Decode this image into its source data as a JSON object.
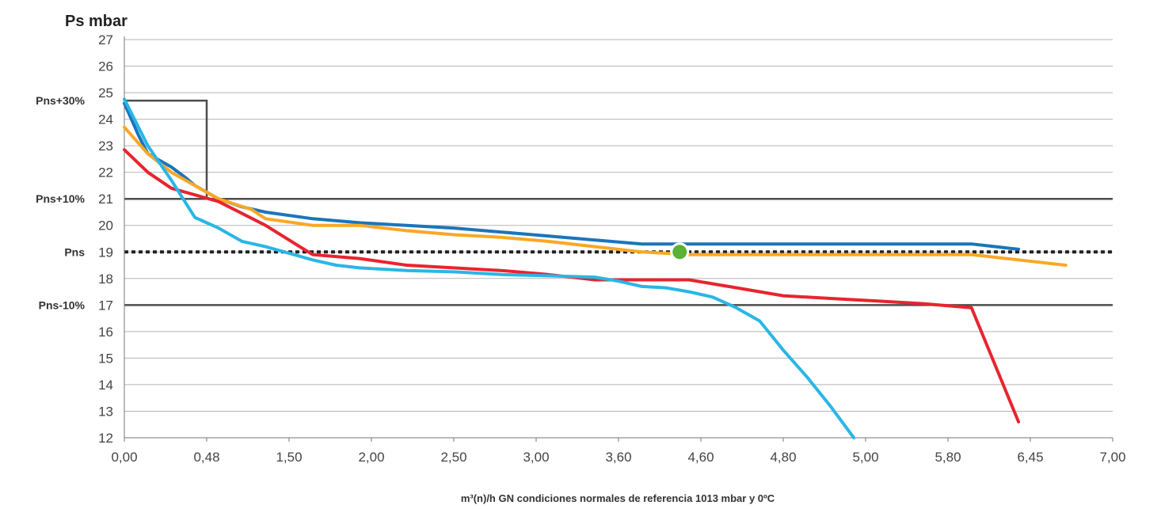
{
  "chart_data": {
    "type": "line",
    "title": "",
    "ylabel": "Ps mbar",
    "xlabel": "m³(n)/h GN condiciones normales de referencia 1013 mbar y 0ºC",
    "categories": [
      "0,00",
      "0,48",
      "1,50",
      "2,00",
      "2,50",
      "3,00",
      "3,60",
      "4,60",
      "4,80",
      "5,00",
      "5,80",
      "6,45",
      "7,00"
    ],
    "ylim": [
      12,
      27
    ],
    "yticks": [
      12,
      13,
      14,
      15,
      16,
      17,
      18,
      19,
      20,
      21,
      22,
      23,
      24,
      25,
      26,
      27
    ],
    "grid": true,
    "reference_lines": [
      {
        "label": "Pns+30%",
        "y": 24.7,
        "style": "box",
        "x_end_index": 1,
        "color": "#4d4d4d"
      },
      {
        "label": "Pns+10%",
        "y": 21,
        "style": "solid",
        "color": "#4d4d4d"
      },
      {
        "label": "Pns",
        "y": 19,
        "style": "dotted",
        "color": "#222222"
      },
      {
        "label": "Pns-10%",
        "y": 17,
        "style": "solid",
        "color": "#4d4d4d"
      }
    ],
    "series": [
      {
        "color": "#1b75bb",
        "points": [
          [
            0,
            24.6
          ],
          [
            0.3,
            23.4
          ],
          [
            0.5,
            22.7
          ],
          [
            1,
            22.2
          ],
          [
            1.3,
            21.8
          ],
          [
            1.5,
            21.5
          ],
          [
            2,
            21.0
          ],
          [
            2.5,
            20.7
          ],
          [
            3,
            20.5
          ],
          [
            4,
            20.25
          ],
          [
            5,
            20.1
          ],
          [
            6,
            20.0
          ],
          [
            7,
            19.9
          ],
          [
            8,
            19.75
          ],
          [
            9,
            19.6
          ],
          [
            10,
            19.45
          ],
          [
            11,
            19.3
          ],
          [
            12,
            19.3
          ],
          [
            13,
            19.3
          ],
          [
            14,
            19.3
          ],
          [
            15,
            19.3
          ],
          [
            16,
            19.3
          ],
          [
            17,
            19.3
          ],
          [
            18,
            19.3
          ],
          [
            19,
            19.1
          ]
        ]
      },
      {
        "color": "#f9a825",
        "points": [
          [
            0,
            23.7
          ],
          [
            0.5,
            22.7
          ],
          [
            1,
            22.0
          ],
          [
            1.5,
            21.5
          ],
          [
            2,
            21.0
          ],
          [
            2.7,
            20.6
          ],
          [
            3,
            20.25
          ],
          [
            4,
            20.0
          ],
          [
            5,
            20.0
          ],
          [
            6,
            19.8
          ],
          [
            7,
            19.65
          ],
          [
            8,
            19.55
          ],
          [
            9,
            19.4
          ],
          [
            10,
            19.2
          ],
          [
            11,
            19.0
          ],
          [
            12,
            18.9
          ],
          [
            13,
            18.9
          ],
          [
            14,
            18.9
          ],
          [
            15,
            18.9
          ],
          [
            16,
            18.9
          ],
          [
            17,
            18.9
          ],
          [
            18,
            18.9
          ],
          [
            19,
            18.7
          ],
          [
            20,
            18.5
          ]
        ]
      },
      {
        "color": "#e8242f",
        "points": [
          [
            0,
            22.85
          ],
          [
            0.5,
            22.0
          ],
          [
            1,
            21.4
          ],
          [
            2,
            20.9
          ],
          [
            3,
            20.0
          ],
          [
            4,
            18.9
          ],
          [
            5,
            18.75
          ],
          [
            6,
            18.5
          ],
          [
            7,
            18.4
          ],
          [
            8,
            18.3
          ],
          [
            9,
            18.15
          ],
          [
            10,
            17.95
          ],
          [
            11,
            17.95
          ],
          [
            12,
            17.95
          ],
          [
            13,
            17.65
          ],
          [
            14,
            17.35
          ],
          [
            15,
            17.25
          ],
          [
            16,
            17.15
          ],
          [
            17,
            17.05
          ],
          [
            18,
            16.9
          ],
          [
            19,
            12.6
          ]
        ]
      },
      {
        "color": "#29b6e6",
        "points": [
          [
            0,
            24.75
          ],
          [
            0.5,
            23.0
          ],
          [
            1,
            21.7
          ],
          [
            1.5,
            20.3
          ],
          [
            2,
            19.9
          ],
          [
            2.5,
            19.4
          ],
          [
            3,
            19.2
          ],
          [
            3.5,
            18.95
          ],
          [
            4,
            18.7
          ],
          [
            4.5,
            18.5
          ],
          [
            5,
            18.4
          ],
          [
            6,
            18.3
          ],
          [
            7,
            18.25
          ],
          [
            8,
            18.15
          ],
          [
            9,
            18.1
          ],
          [
            10,
            18.05
          ],
          [
            10.5,
            17.9
          ],
          [
            11,
            17.7
          ],
          [
            11.5,
            17.65
          ],
          [
            12,
            17.5
          ],
          [
            12.5,
            17.3
          ],
          [
            13,
            16.9
          ],
          [
            13.5,
            16.4
          ],
          [
            14,
            15.3
          ],
          [
            14.5,
            14.3
          ],
          [
            15,
            13.2
          ],
          [
            15.5,
            12.0
          ]
        ]
      }
    ],
    "highlight_point": {
      "x": 11.8,
      "y": 19.0,
      "color": "#5ab134"
    }
  }
}
